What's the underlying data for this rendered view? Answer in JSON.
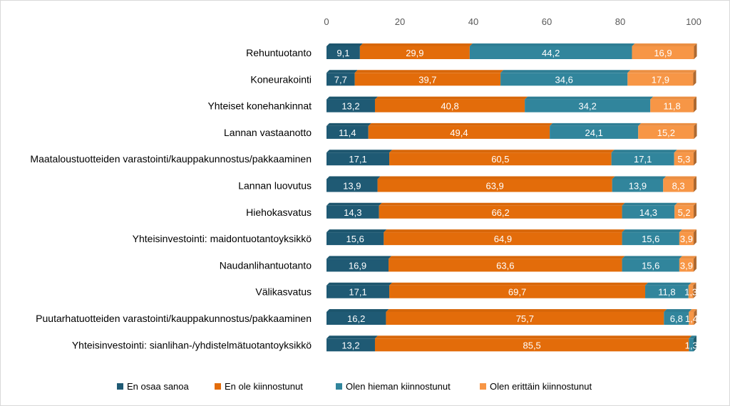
{
  "chart_data": {
    "type": "bar",
    "orientation": "horizontal",
    "stacked": true,
    "title": "",
    "xlabel": "",
    "ylabel": "",
    "xlim": [
      0,
      100
    ],
    "xticks": [
      0,
      20,
      40,
      60,
      80,
      100
    ],
    "grid": false,
    "legend_position": "bottom",
    "categories": [
      "Rehuntuotanto",
      "Koneurakointi",
      "Yhteiset konehankinnat",
      "Lannan vastaanotto",
      "Maataloustuotteiden varastointi/kauppakunnostus/pakkaaminen",
      "Lannan luovutus",
      "Hiehokasvatus",
      "Yhteisinvestointi: maidontuotantoyksikkö",
      "Naudanlihantuotanto",
      "Välikasvatus",
      "Puutarhatuotteiden varastointi/kauppakunnostus/pakkaaminen",
      "Yhteisinvestointi: sianlihan-/yhdistelmätuotantoyksikkö"
    ],
    "series": [
      {
        "name": "En osaa sanoa",
        "color": "#1f5a74",
        "values": [
          9.1,
          7.7,
          13.2,
          11.4,
          17.1,
          13.9,
          14.3,
          15.6,
          16.9,
          17.1,
          16.2,
          13.2
        ],
        "labels": [
          "9,1",
          "7,7",
          "13,2",
          "11,4",
          "17,1",
          "13,9",
          "14,3",
          "15,6",
          "16,9",
          "17,1",
          "16,2",
          "13,2"
        ]
      },
      {
        "name": "En ole kiinnostunut",
        "color": "#e36c0a",
        "values": [
          29.9,
          39.7,
          40.8,
          49.4,
          60.5,
          63.9,
          66.2,
          64.9,
          63.6,
          69.7,
          75.7,
          85.5
        ],
        "labels": [
          "29,9",
          "39,7",
          "40,8",
          "49,4",
          "60,5",
          "63,9",
          "66,2",
          "64,9",
          "63,6",
          "69,7",
          "75,7",
          "85,5"
        ]
      },
      {
        "name": "Olen hieman kiinnostunut",
        "color": "#31859c",
        "values": [
          44.2,
          34.6,
          34.2,
          24.1,
          17.1,
          13.9,
          14.3,
          15.6,
          15.6,
          11.8,
          6.8,
          1.3
        ],
        "labels": [
          "44,2",
          "34,6",
          "34,2",
          "24,1",
          "17,1",
          "13,9",
          "14,3",
          "15,6",
          "15,6",
          "11,8",
          "6,8",
          "1,3"
        ]
      },
      {
        "name": "Olen erittäin kiinnostunut",
        "color": "#f79646",
        "values": [
          16.9,
          17.9,
          11.8,
          15.2,
          5.3,
          8.3,
          5.2,
          3.9,
          3.9,
          1.3,
          1.4,
          0
        ],
        "labels": [
          "16,9",
          "17,9",
          "11,8",
          "15,2",
          "5,3",
          "8,3",
          "5,2",
          "3,9",
          "3,9",
          "1,3",
          "1,4",
          ""
        ]
      }
    ]
  }
}
